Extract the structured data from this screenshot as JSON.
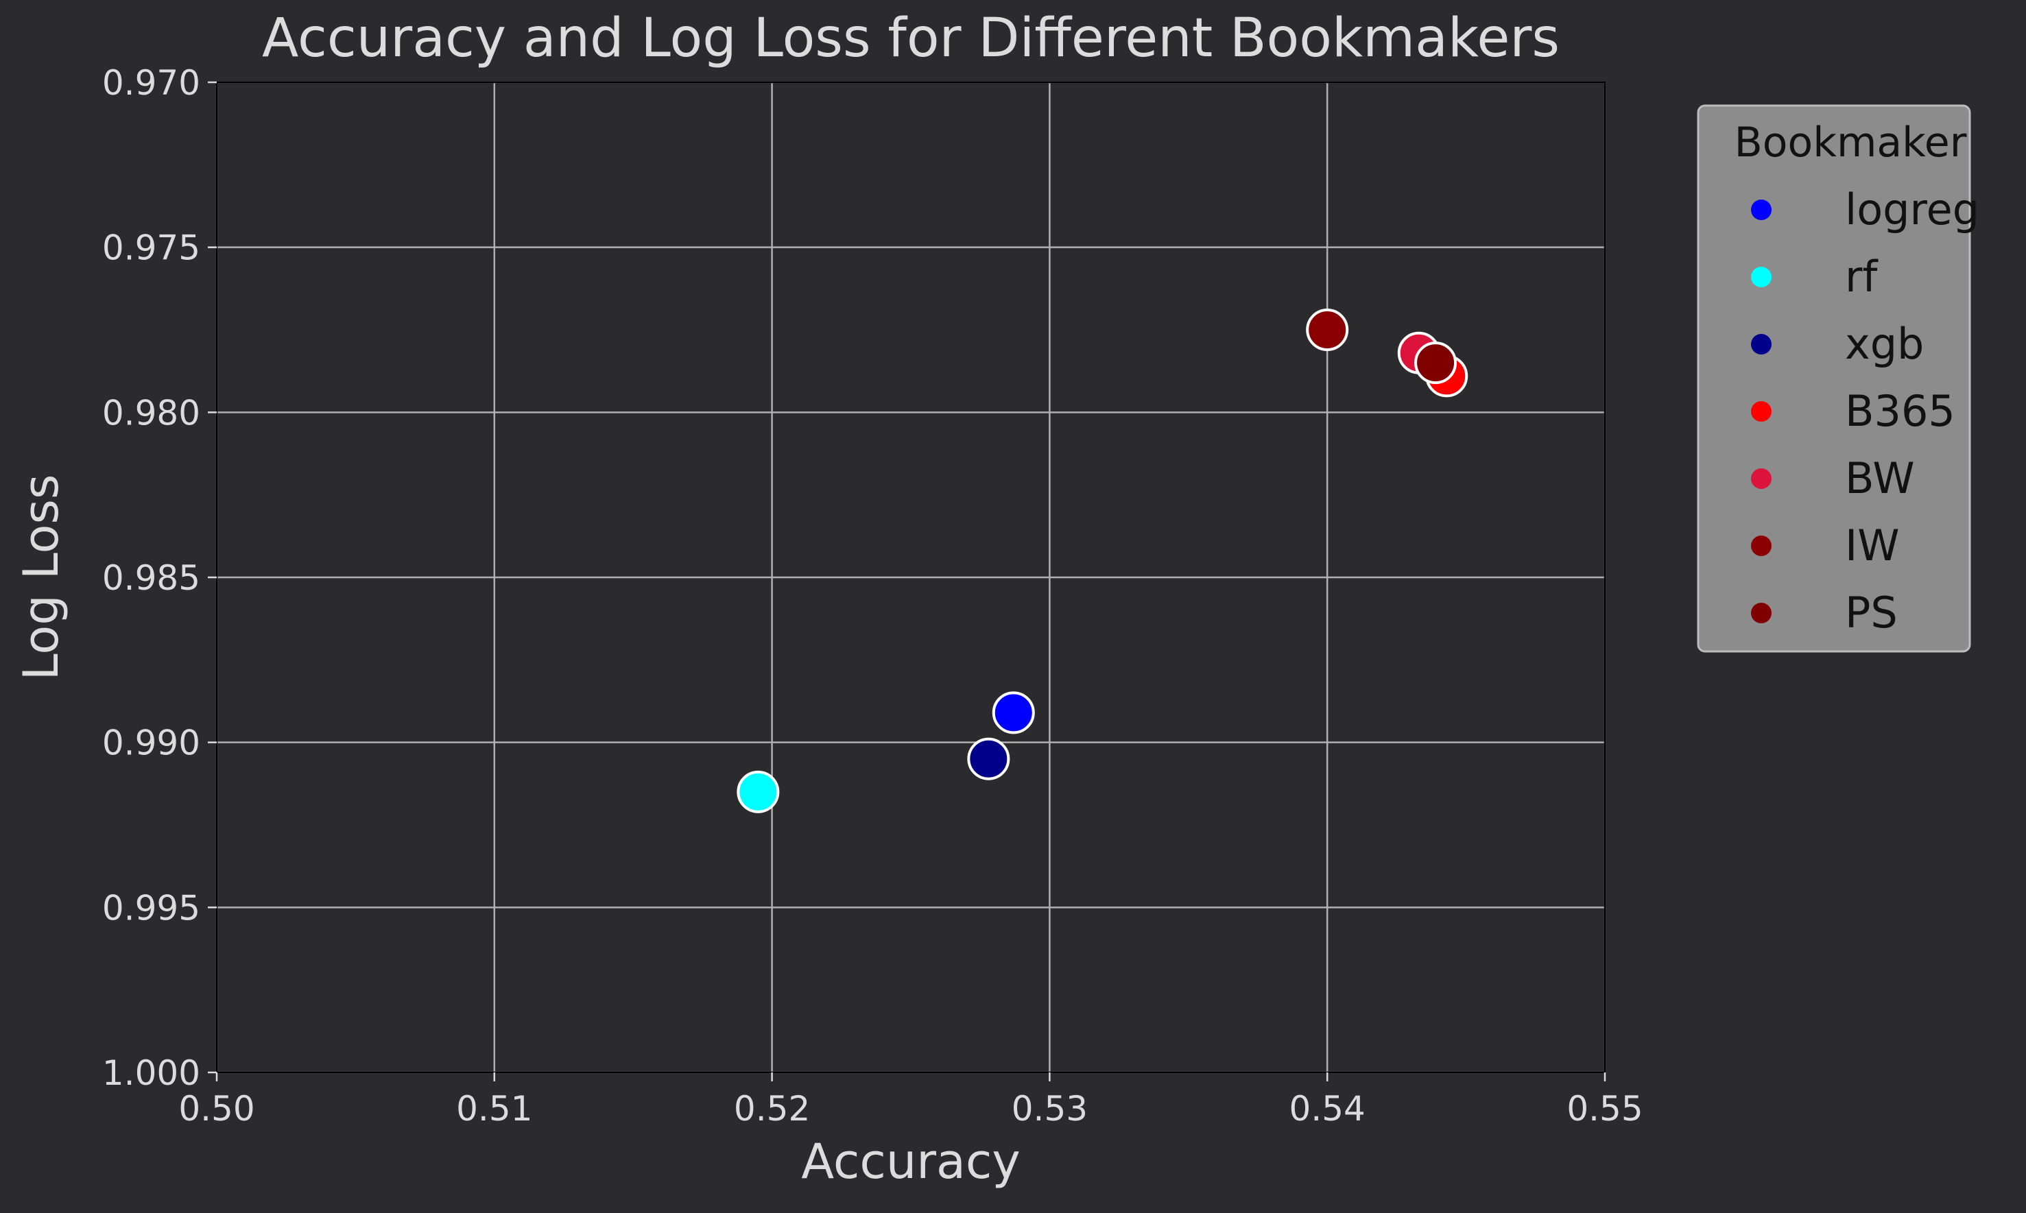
{
  "chart_data": {
    "type": "scatter",
    "title": "Accuracy and Log Loss for Different Bookmakers",
    "xlabel": "Accuracy",
    "ylabel": "Log Loss",
    "xlim": [
      0.5,
      0.55
    ],
    "ylim": [
      0.97,
      1.0
    ],
    "y_inverted": true,
    "grid": true,
    "x_ticks": [
      "0.50",
      "0.51",
      "0.52",
      "0.53",
      "0.54",
      "0.55"
    ],
    "y_ticks": [
      "0.970",
      "0.975",
      "0.980",
      "0.985",
      "0.990",
      "0.995",
      "1.000"
    ],
    "legend": {
      "title": "Bookmaker",
      "placement": "outside-top-right"
    },
    "series": [
      {
        "name": "logreg",
        "color": "#0000ff",
        "x": [
          0.5287
        ],
        "y": [
          0.9891
        ]
      },
      {
        "name": "rf",
        "color": "#00ffff",
        "x": [
          0.5195
        ],
        "y": [
          0.9915
        ]
      },
      {
        "name": "xgb",
        "color": "#00008b",
        "x": [
          0.5278
        ],
        "y": [
          0.9905
        ]
      },
      {
        "name": "B365",
        "color": "#ff0000",
        "x": [
          0.5443
        ],
        "y": [
          0.9789
        ]
      },
      {
        "name": "BW",
        "color": "#dc143c",
        "x": [
          0.5433
        ],
        "y": [
          0.9782
        ]
      },
      {
        "name": "IW",
        "color": "#8b0000",
        "x": [
          0.54
        ],
        "y": [
          0.9775
        ]
      },
      {
        "name": "PS",
        "color": "#800000",
        "x": [
          0.5439
        ],
        "y": [
          0.9785
        ]
      }
    ]
  }
}
